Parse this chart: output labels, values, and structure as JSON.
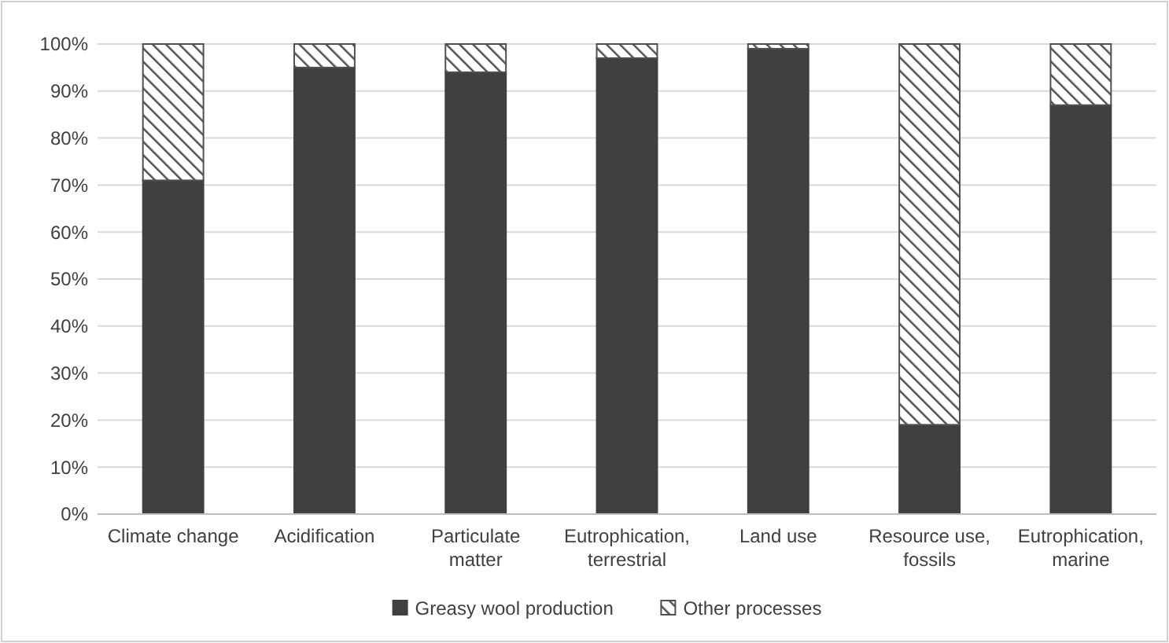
{
  "chart_data": {
    "type": "bar",
    "stacked": true,
    "categories": [
      "Climate change",
      "Acidification",
      "Particulate matter",
      "Eutrophication, terrestrial",
      "Land use",
      "Resource use, fossils",
      "Eutrophication, marine"
    ],
    "series": [
      {
        "name": "Greasy wool production",
        "color": "#404040",
        "values": [
          71,
          95,
          94,
          97,
          99,
          19,
          87
        ]
      },
      {
        "name": "Other processes",
        "color": "#505050",
        "values": [
          29,
          5,
          6,
          3,
          1,
          81,
          13
        ]
      }
    ],
    "ylim": [
      0,
      100
    ],
    "yticks": [
      {
        "value": 0,
        "label": "0%"
      },
      {
        "value": 10,
        "label": "10%"
      },
      {
        "value": 20,
        "label": "20%"
      },
      {
        "value": 30,
        "label": "30%"
      },
      {
        "value": 40,
        "label": "40%"
      },
      {
        "value": 50,
        "label": "50%"
      },
      {
        "value": 60,
        "label": "60%"
      },
      {
        "value": 70,
        "label": "70%"
      },
      {
        "value": 80,
        "label": "80%"
      },
      {
        "value": 90,
        "label": "90%"
      },
      {
        "value": 100,
        "label": "100%"
      }
    ],
    "grid": "y",
    "legend": "bottom"
  }
}
